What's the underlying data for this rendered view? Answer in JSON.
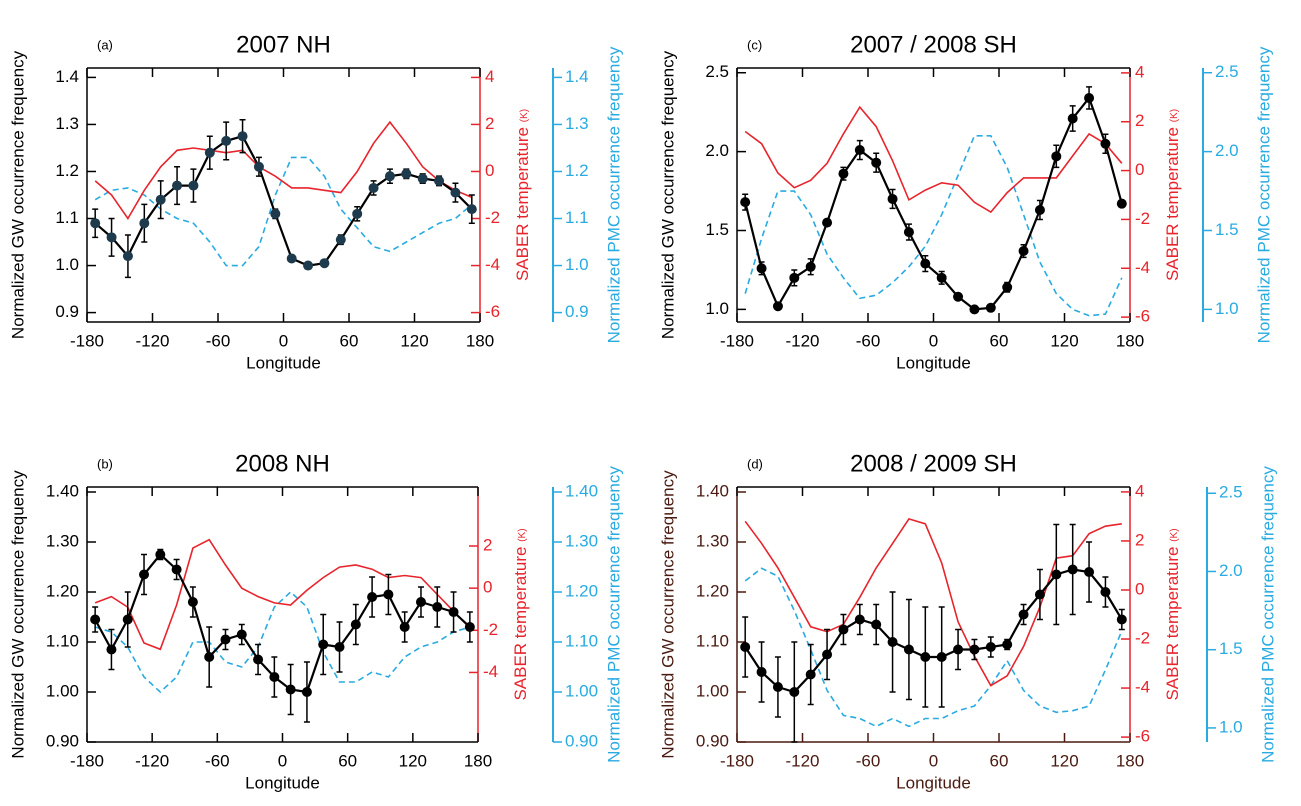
{
  "chart_data": [
    {
      "type": "line",
      "panel_label": "(a)",
      "title": "2007 NH",
      "xlabel": "Longitude",
      "ylabel": "Normalized GW occurrence frequency",
      "y2label": "SABER temperature",
      "y2_unit": "(K)",
      "y3label": "Normalized PMC occurrence frequency",
      "left_axis_color": "#000000",
      "x": [
        -172.5,
        -157.5,
        -142.5,
        -127.5,
        -112.5,
        -97.5,
        -82.5,
        -67.5,
        -52.5,
        -37.5,
        -22.5,
        -7.5,
        7.5,
        22.5,
        37.5,
        52.5,
        67.5,
        82.5,
        97.5,
        112.5,
        127.5,
        142.5,
        157.5,
        172.5
      ],
      "xlim": [
        -180,
        180
      ],
      "xticks": [
        -180,
        -120,
        -60,
        0,
        60,
        120,
        180
      ],
      "ylim": [
        0.88,
        1.42
      ],
      "yticks": [
        0.9,
        {
          "value": 1,
          "label": "1.0"
        },
        1.1,
        1.2,
        1.3,
        1.4
      ],
      "y2lim": [
        -6.4,
        4.4
      ],
      "y2ticks": [
        -6,
        -4,
        -2,
        0,
        2,
        4
      ],
      "y3lim": [
        0.88,
        1.42
      ],
      "y3ticks": [
        0.9,
        {
          "value": 1,
          "label": "1.0"
        },
        1.1,
        1.2,
        1.3,
        1.4
      ],
      "series": [
        {
          "color": "#000000",
          "marker_color": "#1d3b4c",
          "values": [
            1.09,
            1.06,
            1.02,
            1.09,
            1.14,
            1.17,
            1.17,
            1.24,
            1.265,
            1.275,
            1.21,
            1.11,
            1.015,
            1.0,
            1.005,
            1.055,
            1.11,
            1.165,
            1.19,
            1.195,
            1.185,
            1.18,
            1.155,
            1.12
          ],
          "errors": [
            0.03,
            0.04,
            0.045,
            0.04,
            0.04,
            0.04,
            0.035,
            0.035,
            0.04,
            0.035,
            0.02,
            0.01,
            0.005,
            0.005,
            0.005,
            0.01,
            0.015,
            0.015,
            0.015,
            0.01,
            0.01,
            0.01,
            0.02,
            0.03
          ]
        },
        {
          "axis": "y2",
          "color": "#e8242c",
          "values": [
            -0.4,
            -1,
            -2,
            -0.8,
            0.2,
            0.9,
            1,
            0.9,
            0.8,
            0.9,
            0.2,
            -0.2,
            -0.7,
            -0.7,
            -0.8,
            -0.9,
            0,
            1.2,
            2.1,
            1.2,
            0.2,
            -0.4,
            -0.8,
            -1.1
          ]
        },
        {
          "axis": "y3",
          "color": "#29abe2",
          "dashed": true,
          "values": [
            1.14,
            1.16,
            1.165,
            1.15,
            1.12,
            1.1,
            1.09,
            1.05,
            1.0,
            1.0,
            1.04,
            1.15,
            1.23,
            1.23,
            1.19,
            1.12,
            1.08,
            1.04,
            1.03,
            1.05,
            1.07,
            1.09,
            1.1,
            1.13
          ]
        }
      ]
    },
    {
      "type": "line",
      "panel_label": "(c)",
      "title": "2007 / 2008 SH",
      "xlabel": "Longitude",
      "ylabel": "Normalized GW occurrence frequency",
      "y2label": "SABER temperature",
      "y2_unit": "(K)",
      "y3label": "Normalized PMC occurrence frequency",
      "left_axis_color": "#000000",
      "x": [
        -172.5,
        -157.5,
        -142.5,
        -127.5,
        -112.5,
        -97.5,
        -82.5,
        -67.5,
        -52.5,
        -37.5,
        -22.5,
        -7.5,
        7.5,
        22.5,
        37.5,
        52.5,
        67.5,
        82.5,
        97.5,
        112.5,
        127.5,
        142.5,
        157.5,
        172.5
      ],
      "xlim": [
        -180,
        180
      ],
      "xticks": [
        -180,
        -120,
        -60,
        0,
        60,
        120,
        180
      ],
      "ylim": [
        0.92,
        2.53
      ],
      "yticks": [
        {
          "value": 1,
          "label": "1.0"
        },
        1.5,
        {
          "value": 2,
          "label": "2.0"
        },
        2.5
      ],
      "y2lim": [
        -6.2,
        4.2
      ],
      "y2ticks": [
        -6,
        -4,
        -2,
        0,
        2,
        4
      ],
      "y3lim": [
        0.92,
        2.53
      ],
      "y3ticks": [
        {
          "value": 1,
          "label": "1.0"
        },
        1.5,
        {
          "value": 2,
          "label": "2.0"
        },
        2.5
      ],
      "series": [
        {
          "color": "#000000",
          "marker_color": "#000000",
          "values": [
            1.68,
            1.26,
            1.02,
            1.2,
            1.27,
            1.55,
            1.86,
            2.01,
            1.93,
            1.7,
            1.49,
            1.29,
            1.2,
            1.08,
            1.0,
            1.01,
            1.14,
            1.37,
            1.63,
            1.97,
            2.21,
            2.34,
            2.05,
            1.67
          ],
          "errors": [
            0.05,
            0.04,
            0.02,
            0.05,
            0.05,
            0.02,
            0.04,
            0.06,
            0.06,
            0.06,
            0.05,
            0.05,
            0.04,
            0.02,
            0.02,
            0.02,
            0.03,
            0.04,
            0.06,
            0.07,
            0.08,
            0.07,
            0.06,
            0.02
          ]
        },
        {
          "axis": "y2",
          "color": "#e8242c",
          "values": [
            1.6,
            1.1,
            -0.1,
            -0.7,
            -0.4,
            0.3,
            1.5,
            2.6,
            1.8,
            0.4,
            -1.2,
            -0.8,
            -0.5,
            -0.6,
            -1.3,
            -1.7,
            -0.9,
            -0.3,
            -0.3,
            -0.3,
            0.6,
            1.5,
            1.1,
            0.3
          ]
        },
        {
          "axis": "y3",
          "color": "#29abe2",
          "dashed": true,
          "values": [
            1.1,
            1.45,
            1.75,
            1.75,
            1.6,
            1.35,
            1.2,
            1.07,
            1.09,
            1.17,
            1.27,
            1.4,
            1.6,
            1.85,
            2.1,
            2.1,
            1.9,
            1.6,
            1.3,
            1.1,
            1.0,
            0.96,
            0.97,
            1.2
          ]
        }
      ]
    },
    {
      "type": "line",
      "panel_label": "(b)",
      "title": "2008 NH",
      "xlabel": "Longitude",
      "ylabel": "Normalized GW occurrence frequency",
      "y2label": "SABER temperature",
      "y2_unit": "(K)",
      "y3label": "Normalized PMC occurrence frequency",
      "left_axis_color": "#000000",
      "x": [
        -172.5,
        -157.5,
        -142.5,
        -127.5,
        -112.5,
        -97.5,
        -82.5,
        -67.5,
        -52.5,
        -37.5,
        -22.5,
        -7.5,
        7.5,
        22.5,
        37.5,
        52.5,
        67.5,
        82.5,
        97.5,
        112.5,
        127.5,
        142.5,
        157.5,
        172.5
      ],
      "xlim": [
        -180,
        180
      ],
      "xticks": [
        -180,
        -120,
        -60,
        0,
        60,
        120,
        180
      ],
      "ylim": [
        0.9,
        1.41
      ],
      "yticks": [
        {
          "value": 0.9,
          "label": "0.90"
        },
        {
          "value": 1,
          "label": "1.00"
        },
        {
          "value": 1.1,
          "label": "1.10"
        },
        {
          "value": 1.2,
          "label": "1.20"
        },
        {
          "value": 1.3,
          "label": "1.30"
        },
        {
          "value": 1.4,
          "label": "1.40"
        }
      ],
      "y2lim": [
        -7.3,
        4.8
      ],
      "y2ticks": [
        -4,
        -2,
        0,
        2
      ],
      "y3lim": [
        0.9,
        1.41
      ],
      "y3ticks": [
        {
          "value": 0.9,
          "label": "0.90"
        },
        {
          "value": 1,
          "label": "1.00"
        },
        {
          "value": 1.1,
          "label": "1.10"
        },
        {
          "value": 1.2,
          "label": "1.20"
        },
        {
          "value": 1.3,
          "label": "1.30"
        },
        {
          "value": 1.4,
          "label": "1.40"
        }
      ],
      "series": [
        {
          "color": "#000000",
          "marker_color": "#000000",
          "values": [
            1.145,
            1.085,
            1.145,
            1.235,
            1.275,
            1.245,
            1.18,
            1.07,
            1.105,
            1.115,
            1.065,
            1.03,
            1.005,
            1.0,
            1.095,
            1.09,
            1.135,
            1.19,
            1.195,
            1.13,
            1.18,
            1.17,
            1.16,
            1.13
          ],
          "errors": [
            0.025,
            0.04,
            0.055,
            0.04,
            0.01,
            0.02,
            0.03,
            0.06,
            0.02,
            0.02,
            0.03,
            0.04,
            0.05,
            0.06,
            0.06,
            0.05,
            0.04,
            0.04,
            0.04,
            0.03,
            0.03,
            0.04,
            0.04,
            0.03
          ]
        },
        {
          "axis": "y2",
          "color": "#e8242c",
          "values": [
            -0.7,
            -0.4,
            -0.9,
            -2.6,
            -2.9,
            -0.8,
            1.9,
            2.3,
            1.1,
            0,
            -0.4,
            -0.7,
            -0.8,
            -0.1,
            0.5,
            1,
            1.1,
            0.9,
            0.5,
            0.6,
            0.5,
            -0.3,
            -1.1,
            -1.9
          ]
        },
        {
          "axis": "y3",
          "color": "#29abe2",
          "dashed": true,
          "values": [
            1.13,
            1.12,
            1.09,
            1.03,
            1.0,
            1.03,
            1.1,
            1.1,
            1.06,
            1.05,
            1.09,
            1.17,
            1.2,
            1.17,
            1.08,
            1.02,
            1.02,
            1.04,
            1.03,
            1.07,
            1.09,
            1.1,
            1.12,
            1.13
          ]
        }
      ]
    },
    {
      "type": "line",
      "panel_label": "(d)",
      "title": "2008 / 2009 SH",
      "xlabel": "Longitude",
      "ylabel": "Normalized GW occurrence frequency",
      "y2label": "SABER temperature",
      "y2_unit": "(K)",
      "y3label": "Normalized PMC occurrence frequency",
      "left_axis_color": "#4a1a10",
      "x": [
        -172.5,
        -157.5,
        -142.5,
        -127.5,
        -112.5,
        -97.5,
        -82.5,
        -67.5,
        -52.5,
        -37.5,
        -22.5,
        -7.5,
        7.5,
        22.5,
        37.5,
        52.5,
        67.5,
        82.5,
        97.5,
        112.5,
        127.5,
        142.5,
        157.5,
        172.5
      ],
      "xlim": [
        -180,
        180
      ],
      "xticks": [
        -180,
        -120,
        -60,
        0,
        60,
        120,
        180
      ],
      "ylim": [
        0.9,
        1.41
      ],
      "yticks": [
        {
          "value": 0.9,
          "label": "0.90"
        },
        {
          "value": 1,
          "label": "1.00"
        },
        {
          "value": 1.1,
          "label": "1.10"
        },
        {
          "value": 1.2,
          "label": "1.20"
        },
        {
          "value": 1.3,
          "label": "1.30"
        },
        {
          "value": 1.4,
          "label": "1.40"
        }
      ],
      "y2lim": [
        -6.2,
        4.2
      ],
      "y2ticks": [
        -6,
        -4,
        -2,
        0,
        2,
        4
      ],
      "y3lim": [
        0.91,
        2.54
      ],
      "y3ticks": [
        {
          "value": 1,
          "label": "1.0"
        },
        1.5,
        {
          "value": 2,
          "label": "2.0"
        },
        2.5
      ],
      "series": [
        {
          "color": "#000000",
          "marker_color": "#000000",
          "values": [
            1.09,
            1.04,
            1.01,
            1.0,
            1.035,
            1.075,
            1.125,
            1.145,
            1.135,
            1.1,
            1.085,
            1.07,
            1.07,
            1.085,
            1.085,
            1.09,
            1.095,
            1.155,
            1.195,
            1.235,
            1.245,
            1.24,
            1.2,
            1.145
          ],
          "errors": [
            0.06,
            0.06,
            0.06,
            0.1,
            0.06,
            0.05,
            0.03,
            0.03,
            0.04,
            0.1,
            0.1,
            0.1,
            0.1,
            0.04,
            0.02,
            0.02,
            0.01,
            0.02,
            0.05,
            0.1,
            0.09,
            0.06,
            0.03,
            0.02
          ]
        },
        {
          "axis": "y2",
          "color": "#e8242c",
          "values": [
            2.8,
            1.9,
            0.9,
            -0.3,
            -1.5,
            -1.7,
            -1.4,
            -0.3,
            0.9,
            1.9,
            2.9,
            2.7,
            1.1,
            -1.3,
            -2.7,
            -3.9,
            -3.5,
            -2.3,
            -0.7,
            1.3,
            1.4,
            2.3,
            2.6,
            2.7
          ]
        },
        {
          "axis": "y3",
          "color": "#29abe2",
          "dashed": true,
          "values": [
            1.94,
            2.02,
            1.97,
            1.75,
            1.5,
            1.24,
            1.08,
            1.06,
            1.01,
            1.06,
            1.01,
            1.06,
            1.06,
            1.11,
            1.14,
            1.27,
            1.43,
            1.24,
            1.14,
            1.1,
            1.11,
            1.14,
            1.37,
            1.62
          ]
        }
      ]
    }
  ]
}
